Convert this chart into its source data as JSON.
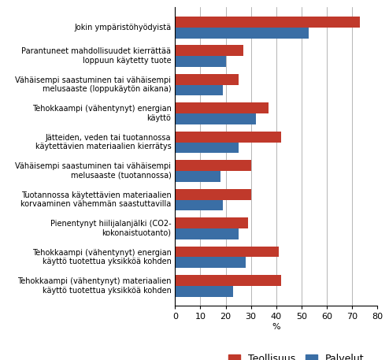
{
  "categories": [
    "Tehokkaampi (vähentynyt) materiaalien\nkäyttö tuotettua yksikköä kohden",
    "Tehokkaampi (vähentynyt) energian\nkäyttö tuotettua yksikköä kohden",
    "Pienentynyt hiilijalanjälki (CO2-\nkokonaistuotanto)",
    "Tuotannossa käytettävien materiaalien\nkorvaaminen vähemmän saastuttavilla",
    "Vähäisempi saastuminen tai vähäisempi\nmelusaaste (tuotannossa)",
    "Jätteiden, veden tai tuotannossa\nkäytettävien materiaalien kierrätys",
    "Tehokkaampi (vähentynyt) energian\nkäyttö",
    "Vähäisempi saastuminen tai vähäisempi\nmelusaaste (loppukäytön aikana)",
    "Parantuneet mahdollisuudet kierrättää\nloppuun käytetty tuote",
    "Jokin ympäristöhyödyistä"
  ],
  "teollisuus": [
    42,
    41,
    29,
    30,
    30,
    42,
    37,
    25,
    27,
    73
  ],
  "palvelut": [
    23,
    28,
    25,
    19,
    18,
    25,
    32,
    19,
    20,
    53
  ],
  "color_teollisuus": "#C0392B",
  "color_palvelut": "#3A6EA5",
  "xlabel": "%",
  "xlim": [
    0,
    80
  ],
  "xticks": [
    0,
    10,
    20,
    30,
    40,
    50,
    60,
    70,
    80
  ],
  "legend_labels": [
    "Teollisuus",
    "Palvelut"
  ],
  "bar_height": 0.38,
  "fontsize_labels": 7.0,
  "fontsize_ticks": 8,
  "fontsize_legend": 9,
  "figsize": [
    4.94,
    4.57
  ],
  "dpi": 100
}
